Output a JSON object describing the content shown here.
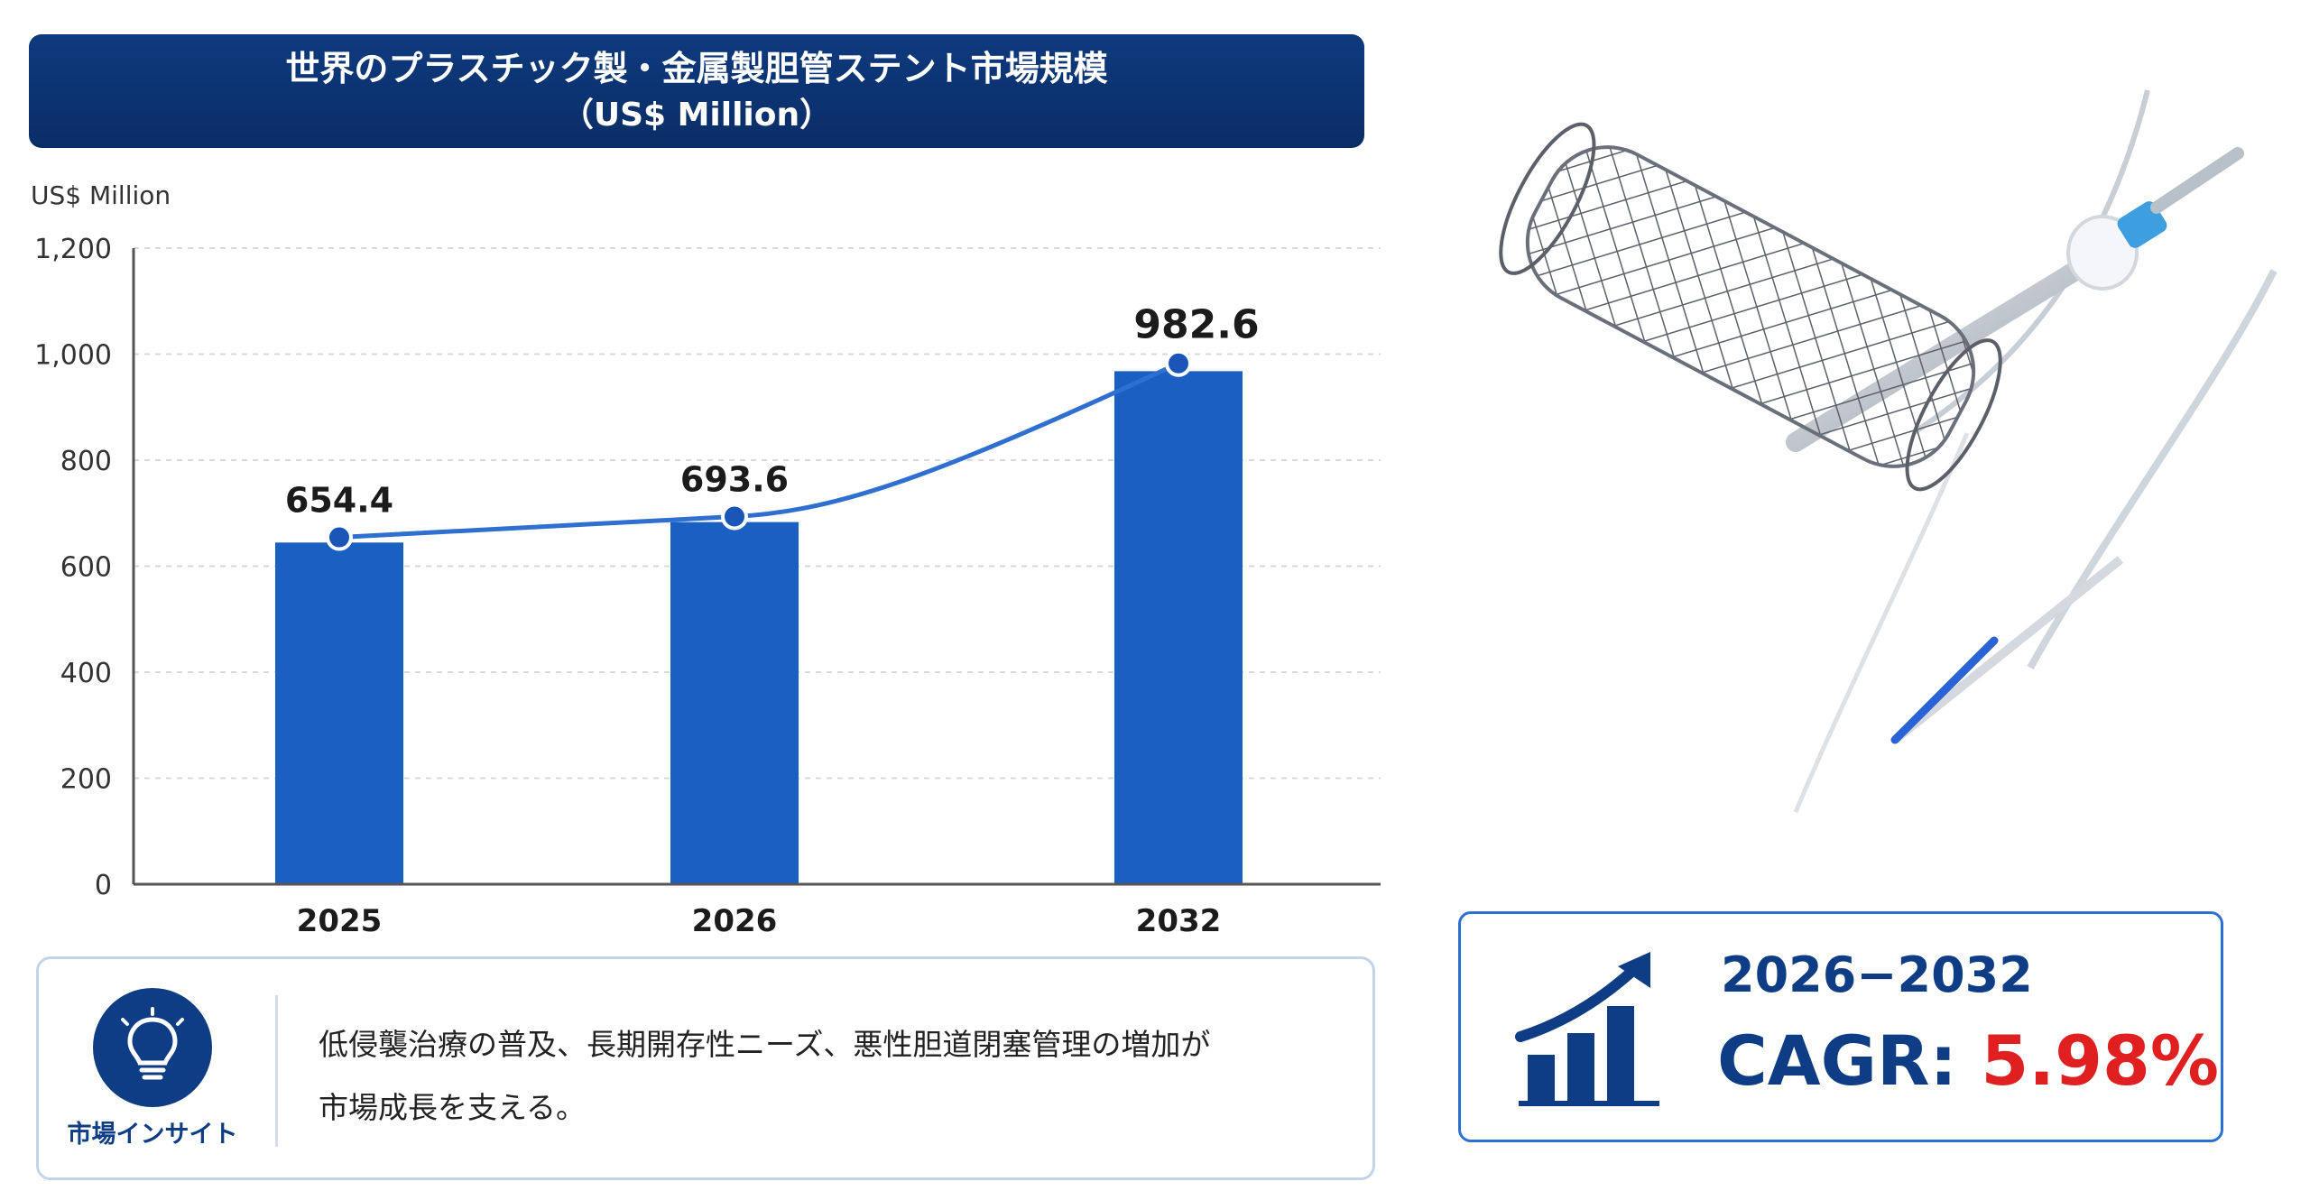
{
  "title": {
    "line1": "世界のプラスチック製・金属製胆管ステント市場規模",
    "line2": "（US$ Million）"
  },
  "chart_data": {
    "type": "bar",
    "unit_label": "US$ Million",
    "categories": [
      "2025",
      "2026",
      "2032"
    ],
    "values": [
      654.4,
      693.6,
      982.6
    ],
    "value_labels": [
      "654.4",
      "693.6",
      "982.6"
    ],
    "ylim": [
      0,
      1200
    ],
    "yticks": [
      0,
      200,
      400,
      600,
      800,
      1000,
      1200
    ],
    "ytick_labels": [
      "0",
      "200",
      "400",
      "600",
      "800",
      "1,000",
      "1,200"
    ],
    "overlay": "line",
    "grid": true,
    "colors": {
      "bar": "#1a5fc2",
      "line": "#2f6fd0",
      "marker": "#1a56b8"
    }
  },
  "insight": {
    "label": "市場インサイト",
    "icon": "lightbulb-icon",
    "line1": "低侵襲治療の普及、長期開存性ニーズ、悪性胆道閉塞管理の増加が",
    "line2": "市場成長を支える。"
  },
  "cagr": {
    "icon": "growth-chart-icon",
    "period": "2026−2032",
    "label": "CAGR: ",
    "value": "5.98%"
  },
  "illustration": {
    "icon": "biliary-stent-icon"
  }
}
